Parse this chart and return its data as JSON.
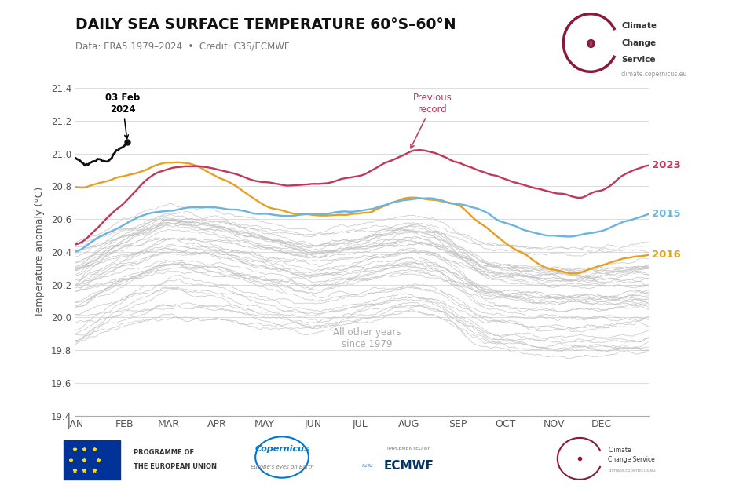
{
  "title": "DAILY SEA SURFACE TEMPERATURE 60°S–60°N",
  "subtitle": "Data: ERA5 1979–2024  •  Credit: C3S/ECMWF",
  "ylabel": "Temperature anomaly (°C)",
  "ylim": [
    19.4,
    21.4
  ],
  "yticks": [
    19.4,
    19.6,
    19.8,
    20.0,
    20.2,
    20.4,
    20.6,
    20.8,
    21.0,
    21.2,
    21.4
  ],
  "months": [
    "JAN",
    "FEB",
    "MAR",
    "APR",
    "MAY",
    "JUN",
    "JUL",
    "AUG",
    "SEP",
    "OCT",
    "NOV",
    "DEC"
  ],
  "month_tick_days": [
    0,
    31,
    59,
    90,
    120,
    151,
    181,
    212,
    243,
    273,
    304,
    334
  ],
  "color_2024": "#111111",
  "color_2023": "#c0395a",
  "color_2015": "#6ab4e0",
  "color_2016": "#e6a020",
  "color_other": "#c0c0c0",
  "annotation_date": "03 Feb\n2024",
  "annotation_record": "Previous\nrecord",
  "label_2023": "2023",
  "label_2015": "2015",
  "label_2016": "2016",
  "label_other": "All other years\nsince 1979",
  "background_color": "#ffffff",
  "grid_color": "#dddddd",
  "logo_circle_color": "#8B1A3A",
  "footer_text_1": "PROGRAMME OF\nTHE EUROPEAN UNION",
  "footer_text_2": "IMPLEMENTED BY",
  "footer_text_3": "ECMWF",
  "footer_text_4": "Climate\nChange\nService",
  "logo_text_main": "Climate\nChange Service",
  "logo_text_url": "climate.copernicus.eu"
}
